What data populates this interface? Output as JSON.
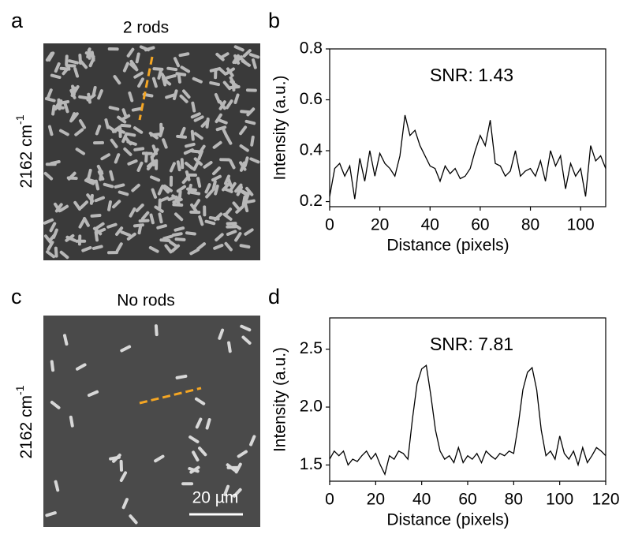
{
  "images": [
    {
      "letter": "a",
      "title": "2 rods",
      "ylabel": "2162 cm",
      "ylabel_sup": "-1"
    },
    {
      "letter": "c",
      "title": "No rods",
      "ylabel": "2162 cm",
      "ylabel_sup": "-1",
      "scalebar": "20 µm"
    }
  ],
  "chart_data": [
    {
      "type": "line",
      "panel_label": "b",
      "annotation": "SNR: 1.43",
      "xlabel": "Distance (pixels)",
      "ylabel": "Intensity (a.u.)",
      "color": "#000000",
      "x": [
        0,
        2,
        4,
        6,
        8,
        10,
        12,
        14,
        16,
        18,
        20,
        22,
        24,
        26,
        28,
        30,
        32,
        34,
        36,
        38,
        40,
        42,
        44,
        46,
        48,
        50,
        52,
        54,
        56,
        58,
        60,
        62,
        64,
        66,
        68,
        70,
        72,
        74,
        76,
        78,
        80,
        82,
        84,
        86,
        88,
        90,
        92,
        94,
        96,
        98,
        100,
        102,
        104,
        106,
        108,
        110
      ],
      "values": [
        0.22,
        0.33,
        0.35,
        0.3,
        0.34,
        0.21,
        0.37,
        0.28,
        0.4,
        0.3,
        0.39,
        0.35,
        0.33,
        0.3,
        0.38,
        0.54,
        0.46,
        0.48,
        0.42,
        0.38,
        0.34,
        0.33,
        0.28,
        0.34,
        0.31,
        0.33,
        0.29,
        0.3,
        0.33,
        0.4,
        0.46,
        0.42,
        0.52,
        0.35,
        0.34,
        0.3,
        0.32,
        0.4,
        0.3,
        0.32,
        0.33,
        0.3,
        0.36,
        0.28,
        0.4,
        0.34,
        0.38,
        0.25,
        0.35,
        0.3,
        0.33,
        0.22,
        0.42,
        0.36,
        0.38,
        0.33
      ],
      "xlim": [
        0,
        110
      ],
      "xticks": [
        0,
        20,
        40,
        60,
        80,
        100
      ],
      "ylim": [
        0.18,
        0.8
      ],
      "yticks": [
        0.2,
        0.4,
        0.6,
        0.8
      ]
    },
    {
      "type": "line",
      "panel_label": "d",
      "annotation": "SNR: 7.81",
      "xlabel": "Distance (pixels)",
      "ylabel": "Intensity (a.u.)",
      "color": "#000000",
      "x": [
        0,
        2,
        4,
        6,
        8,
        10,
        12,
        14,
        16,
        18,
        20,
        22,
        24,
        26,
        28,
        30,
        32,
        34,
        36,
        38,
        40,
        42,
        44,
        46,
        48,
        50,
        52,
        54,
        56,
        58,
        60,
        62,
        64,
        66,
        68,
        70,
        72,
        74,
        76,
        78,
        80,
        82,
        84,
        86,
        88,
        90,
        92,
        94,
        96,
        98,
        100,
        102,
        104,
        106,
        108,
        110,
        112,
        114,
        116,
        118,
        120
      ],
      "values": [
        1.55,
        1.62,
        1.58,
        1.62,
        1.5,
        1.55,
        1.53,
        1.58,
        1.62,
        1.55,
        1.6,
        1.5,
        1.42,
        1.58,
        1.55,
        1.62,
        1.6,
        1.55,
        1.9,
        2.2,
        2.33,
        2.36,
        2.1,
        1.8,
        1.62,
        1.55,
        1.58,
        1.52,
        1.65,
        1.52,
        1.58,
        1.55,
        1.6,
        1.52,
        1.62,
        1.58,
        1.55,
        1.6,
        1.58,
        1.62,
        1.6,
        1.85,
        2.15,
        2.3,
        2.34,
        2.15,
        1.8,
        1.58,
        1.62,
        1.55,
        1.75,
        1.6,
        1.55,
        1.62,
        1.5,
        1.65,
        1.52,
        1.58,
        1.65,
        1.62,
        1.58
      ],
      "xlim": [
        0,
        120
      ],
      "xticks": [
        0,
        20,
        40,
        60,
        80,
        100,
        120
      ],
      "ylim": [
        1.36,
        2.77
      ],
      "yticks": [
        1.5,
        {
          "value": 2,
          "label": "2.0"
        },
        2.5
      ]
    }
  ]
}
